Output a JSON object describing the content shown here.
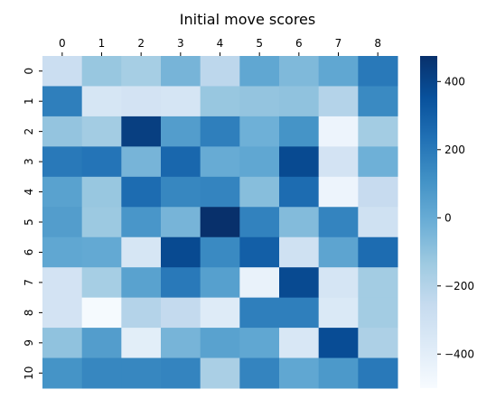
{
  "chart_data": {
    "type": "heatmap",
    "title": "Initial move scores",
    "xlabel": "",
    "ylabel": "",
    "x_categories": [
      "0",
      "1",
      "2",
      "3",
      "4",
      "5",
      "6",
      "7",
      "8"
    ],
    "y_categories": [
      "0",
      "1",
      "2",
      "3",
      "4",
      "5",
      "6",
      "7",
      "8",
      "9",
      "10"
    ],
    "x_axis_position": "top",
    "grid": false,
    "colormap": "Blues",
    "colorbar": {
      "vmin": -500,
      "vmax": 475,
      "ticks": [
        400,
        200,
        0,
        -200,
        -400
      ],
      "tick_labels": [
        "400",
        "200",
        "0",
        "−200",
        "−400"
      ],
      "placement": "right"
    },
    "values": [
      [
        -280,
        -120,
        -160,
        -40,
        -230,
        20,
        -60,
        20,
        200
      ],
      [
        180,
        -340,
        -320,
        -330,
        -120,
        -110,
        -100,
        -200,
        140
      ],
      [
        -110,
        -150,
        420,
        60,
        180,
        -20,
        100,
        -450,
        -150
      ],
      [
        200,
        220,
        -40,
        270,
        0,
        20,
        380,
        -320,
        -20
      ],
      [
        40,
        -120,
        250,
        150,
        160,
        -80,
        250,
        -450,
        -260
      ],
      [
        60,
        -130,
        90,
        -40,
        480,
        170,
        -70,
        160,
        -300
      ],
      [
        20,
        10,
        -340,
        380,
        140,
        300,
        -300,
        30,
        250
      ],
      [
        -320,
        -160,
        40,
        200,
        50,
        -430,
        380,
        -330,
        -150
      ],
      [
        -320,
        -490,
        -200,
        -250,
        -380,
        180,
        180,
        -360,
        -150
      ],
      [
        -100,
        60,
        -400,
        -40,
        40,
        20,
        -350,
        370,
        -180
      ],
      [
        100,
        150,
        150,
        160,
        -170,
        160,
        20,
        80,
        200
      ]
    ]
  }
}
